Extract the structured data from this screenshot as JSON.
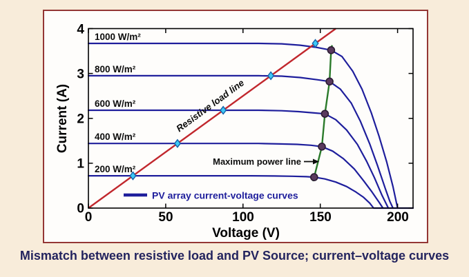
{
  "page": {
    "caption": "Mismatch between resistive load and PV Source; current–voltage curves"
  },
  "chart_data": {
    "type": "line",
    "title": "",
    "xlabel": "Voltage (V)",
    "ylabel": "Current (A)",
    "xlim": [
      0,
      210
    ],
    "ylim": [
      0,
      4
    ],
    "grid": false,
    "x_ticks": [
      0,
      50,
      100,
      150,
      200
    ],
    "y_ticks": [
      0,
      1,
      2,
      3,
      4
    ],
    "x_tick_labels": [
      "0",
      "50",
      "100",
      "150",
      "200"
    ],
    "y_tick_labels": [
      "0",
      "1",
      "2",
      "3",
      "4"
    ],
    "series": [
      {
        "name": "1000 W/m²",
        "label": "1000 W/m²",
        "isc": 3.67,
        "voc": 200,
        "points": [
          [
            0,
            3.67
          ],
          [
            110,
            3.67
          ],
          [
            125,
            3.66
          ],
          [
            137,
            3.63
          ],
          [
            148,
            3.58
          ],
          [
            157,
            3.52
          ],
          [
            164,
            3.38
          ],
          [
            171,
            3.05
          ],
          [
            177,
            2.65
          ],
          [
            183,
            2.12
          ],
          [
            188,
            1.6
          ],
          [
            193,
            1.02
          ],
          [
            197,
            0.48
          ],
          [
            200,
            0
          ]
        ]
      },
      {
        "name": "800 W/m²",
        "label": "800 W/m²",
        "isc": 2.95,
        "voc": 197,
        "points": [
          [
            0,
            2.95
          ],
          [
            110,
            2.95
          ],
          [
            125,
            2.94
          ],
          [
            137,
            2.91
          ],
          [
            148,
            2.86
          ],
          [
            156,
            2.82
          ],
          [
            163,
            2.65
          ],
          [
            170,
            2.34
          ],
          [
            176,
            1.93
          ],
          [
            182,
            1.43
          ],
          [
            187,
            0.95
          ],
          [
            192,
            0.44
          ],
          [
            195,
            0.15
          ],
          [
            197,
            0
          ]
        ]
      },
      {
        "name": "600 W/m²",
        "label": "600 W/m²",
        "isc": 2.18,
        "voc": 194,
        "points": [
          [
            0,
            2.18
          ],
          [
            110,
            2.18
          ],
          [
            125,
            2.17
          ],
          [
            136,
            2.15
          ],
          [
            146,
            2.12
          ],
          [
            153,
            2.1
          ],
          [
            160,
            1.97
          ],
          [
            167,
            1.74
          ],
          [
            174,
            1.42
          ],
          [
            180,
            1.04
          ],
          [
            185,
            0.68
          ],
          [
            190,
            0.28
          ],
          [
            194,
            0
          ]
        ]
      },
      {
        "name": "400 W/m²",
        "label": "400 W/m²",
        "isc": 1.44,
        "voc": 190.5,
        "points": [
          [
            0,
            1.44
          ],
          [
            110,
            1.44
          ],
          [
            124,
            1.43
          ],
          [
            135,
            1.42
          ],
          [
            144,
            1.4
          ],
          [
            151,
            1.37
          ],
          [
            158,
            1.27
          ],
          [
            165,
            1.1
          ],
          [
            172,
            0.87
          ],
          [
            178,
            0.61
          ],
          [
            183,
            0.38
          ],
          [
            188,
            0.13
          ],
          [
            190.5,
            0
          ]
        ]
      },
      {
        "name": "200 W/m²",
        "label": "200 W/m²",
        "isc": 0.72,
        "voc": 184.5,
        "points": [
          [
            0,
            0.72
          ],
          [
            105,
            0.72
          ],
          [
            120,
            0.715
          ],
          [
            132,
            0.71
          ],
          [
            141,
            0.7
          ],
          [
            146,
            0.69
          ],
          [
            153,
            0.65
          ],
          [
            160,
            0.58
          ],
          [
            167,
            0.48
          ],
          [
            173,
            0.36
          ],
          [
            178,
            0.24
          ],
          [
            182,
            0.11
          ],
          [
            184.5,
            0
          ],
          [
            210,
            0
          ]
        ]
      }
    ],
    "load_line": {
      "label": "Resistive load line",
      "resistance_ohms": 40,
      "points": [
        [
          0,
          0
        ],
        [
          160,
          4
        ]
      ]
    },
    "max_power_line": {
      "label": "Maximum power line",
      "points": [
        [
          157.6,
          3.63
        ],
        [
          157,
          3.52
        ],
        [
          156,
          2.82
        ],
        [
          153,
          2.1
        ],
        [
          151,
          1.37
        ],
        [
          146,
          0.69
        ],
        [
          145.3,
          0.6
        ]
      ]
    },
    "max_power_points": [
      [
        157,
        3.52
      ],
      [
        156,
        2.82
      ],
      [
        153,
        2.1
      ],
      [
        151,
        1.37
      ],
      [
        146,
        0.69
      ]
    ],
    "operating_points": [
      [
        28.8,
        0.72
      ],
      [
        57.6,
        1.44
      ],
      [
        87.2,
        2.18
      ],
      [
        118,
        2.95
      ],
      [
        146.8,
        3.67
      ]
    ],
    "legend": {
      "label": "PV array current-voltage curves",
      "position": "inside-lower-center"
    },
    "colors": {
      "curve": "#1e1e9c",
      "load_line": "#c1272d",
      "max_power_line": "#2a7a2a",
      "operating_marker": "#3ec9f5",
      "operating_marker_edge": "#155fa8",
      "mpp_marker": "#5a3a5e",
      "mpp_marker_edge": "#2b1b33",
      "axis": "#000000",
      "panel_border": "#943634",
      "background": "#f8ecda",
      "caption_text": "#23235e"
    }
  }
}
